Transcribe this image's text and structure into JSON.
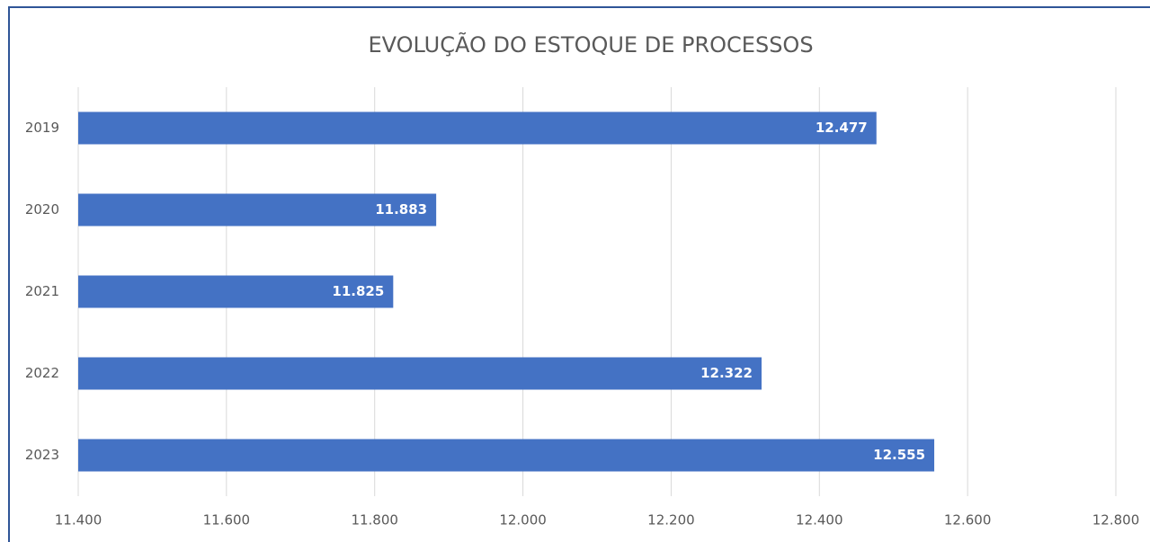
{
  "chart_data": {
    "type": "bar",
    "orientation": "horizontal",
    "title": "EVOLUÇÃO DO ESTOQUE DE PROCESSOS",
    "categories": [
      "2019",
      "2020",
      "2021",
      "2022",
      "2023"
    ],
    "values": [
      12477,
      11883,
      11825,
      12322,
      12555
    ],
    "value_labels": [
      "12.477",
      "11.883",
      "11.825",
      "12.322",
      "12.555"
    ],
    "color": "#4472c4",
    "xlim": [
      11400,
      12800
    ],
    "xticks": [
      {
        "value": 11400,
        "label": "11.400"
      },
      {
        "value": 11600,
        "label": "11.600"
      },
      {
        "value": 11800,
        "label": "11.800"
      },
      {
        "value": 12000,
        "label": "12.000"
      },
      {
        "value": 12200,
        "label": "12.200"
      },
      {
        "value": 12400,
        "label": "12.400"
      },
      {
        "value": 12600,
        "label": "12.600"
      },
      {
        "value": 12800,
        "label": "12.800"
      }
    ],
    "grid": true
  }
}
